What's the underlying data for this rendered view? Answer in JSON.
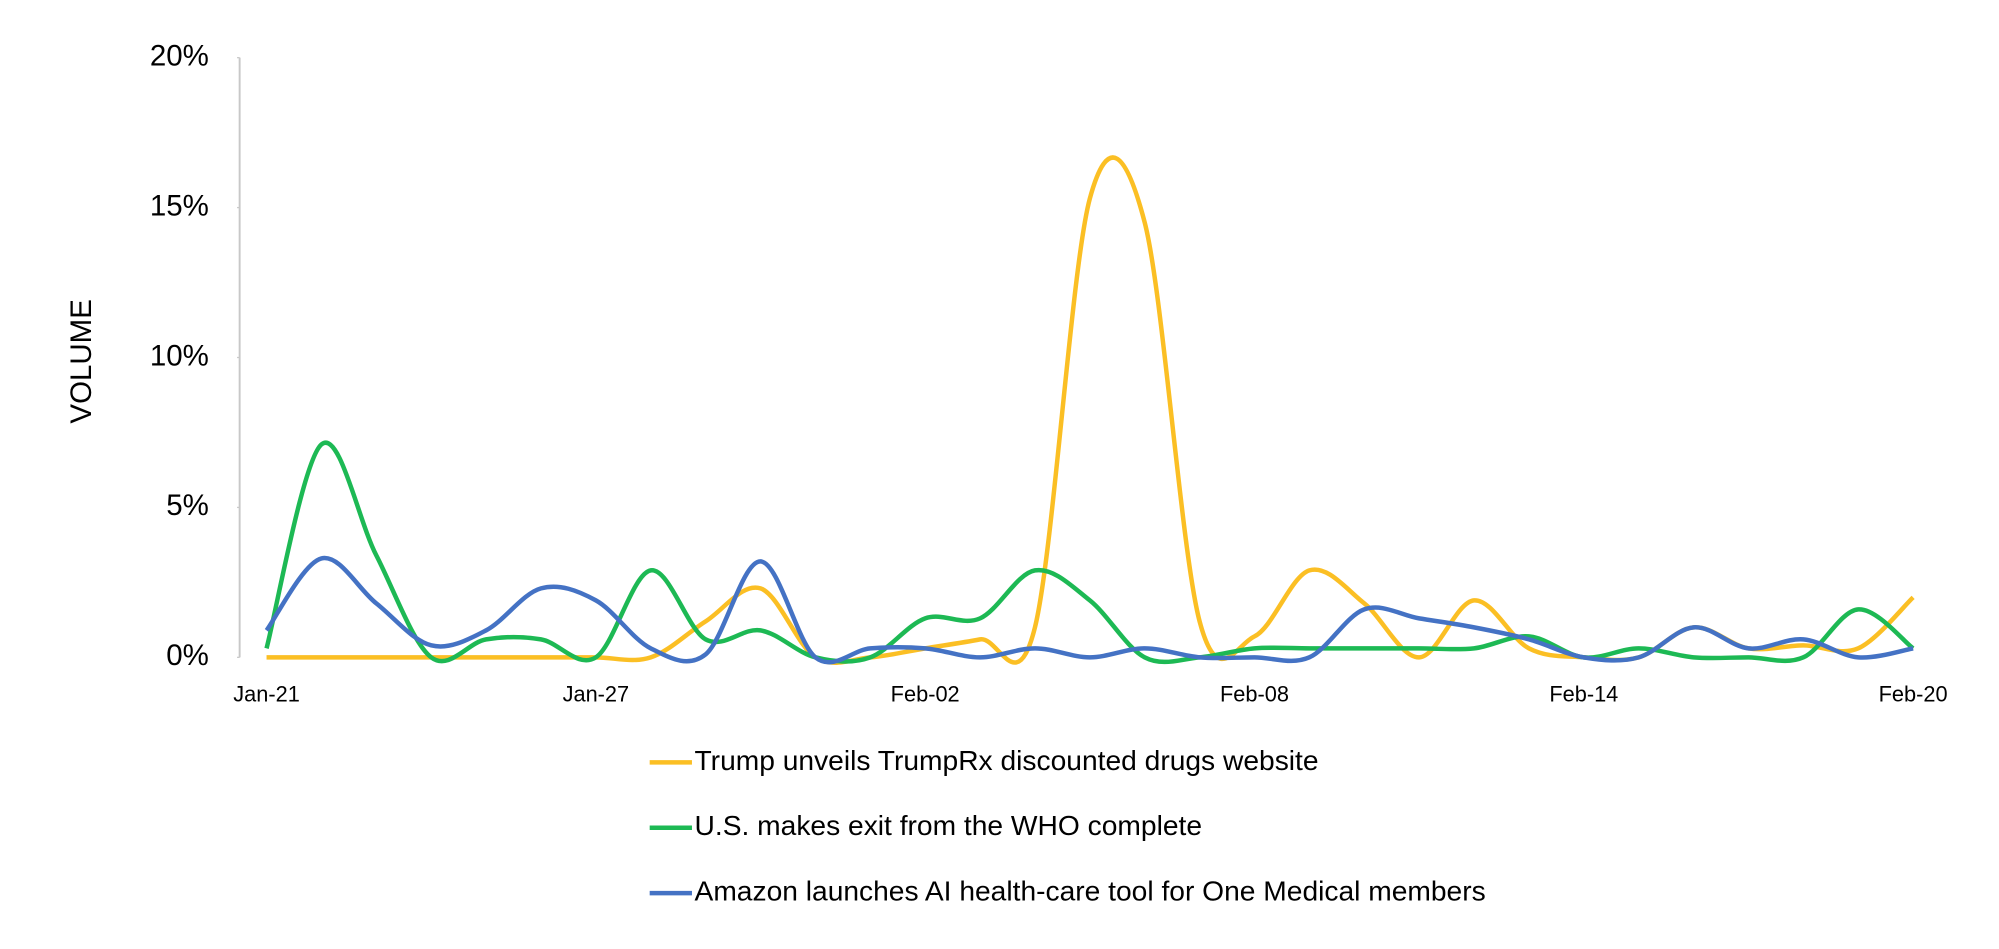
{
  "chart_data": {
    "type": "line",
    "y_label": "VOLUME",
    "categories": [
      "Jan-21",
      null,
      null,
      null,
      null,
      null,
      "Jan-27",
      null,
      null,
      null,
      null,
      null,
      "Feb-02",
      null,
      null,
      null,
      null,
      null,
      "Feb-08",
      null,
      null,
      null,
      null,
      null,
      "Feb-14",
      null,
      null,
      null,
      null,
      null,
      "Feb-20"
    ],
    "ylim": [
      0,
      20
    ],
    "yticks": [
      {
        "value": 0,
        "label": "0%"
      },
      {
        "value": 5,
        "label": "5%"
      },
      {
        "value": 10,
        "label": "10%"
      },
      {
        "value": 15,
        "label": "15%"
      },
      {
        "value": 20,
        "label": "20%"
      }
    ],
    "series": [
      {
        "name": "Trump unveils TrumpRx discounted drugs website",
        "color": "#fbbf24",
        "values": [
          0,
          0,
          0,
          0,
          0,
          0,
          0,
          0,
          1.2,
          2.3,
          0,
          0,
          0.3,
          0.6,
          1.0,
          15.3,
          14.5,
          1.2,
          0.7,
          2.9,
          1.8,
          0,
          1.9,
          0.3,
          0,
          0,
          1.0,
          0.3,
          0.4,
          0.3,
          2.0
        ]
      },
      {
        "name": "U.S. makes exit from the WHO complete",
        "color": "#1db954",
        "values": [
          0.3,
          7.1,
          3.4,
          0,
          0.6,
          0.6,
          0,
          2.9,
          0.6,
          0.9,
          0,
          0,
          1.3,
          1.3,
          2.9,
          1.9,
          0,
          0,
          0.3,
          0.3,
          0.3,
          0.3,
          0.3,
          0.7,
          0,
          0.3,
          0,
          0,
          0,
          1.6,
          0.3
        ]
      },
      {
        "name": "Amazon launches AI health-care tool for One Medical members",
        "color": "#4472c4",
        "values": [
          0.9,
          3.3,
          1.8,
          0.4,
          0.9,
          2.3,
          1.9,
          0.3,
          0.1,
          3.2,
          0,
          0.3,
          0.3,
          0,
          0.3,
          0,
          0.3,
          0,
          0,
          0,
          1.6,
          1.3,
          1.0,
          0.6,
          0,
          0,
          1.0,
          0.3,
          0.6,
          0,
          0.3
        ]
      }
    ]
  }
}
